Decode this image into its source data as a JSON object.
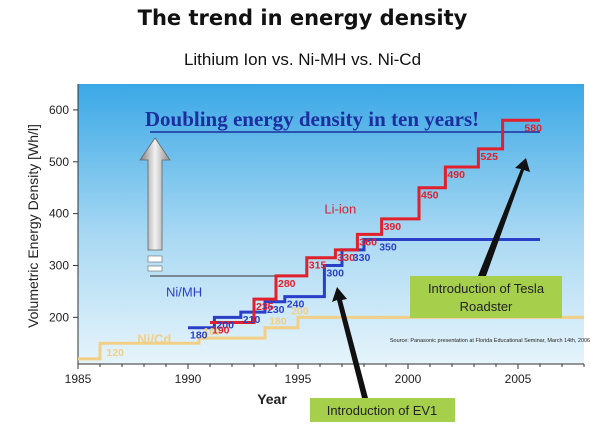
{
  "title": "The trend in energy density",
  "subtitle": "Lithium Ion vs. Ni-MH vs. Ni-Cd",
  "colors": {
    "li_ion": "#e0202a",
    "ni_mh": "#2a3fc8",
    "ni_cd": "#f2cf87",
    "plot_bg_top": "#3aa8e6",
    "plot_bg_bottom": "#e6f4fb",
    "headline": "#1b2f9e",
    "annotation_box": "#a6d04c"
  },
  "annotations": {
    "headline": "Doubling energy density in ten years!",
    "tesla": "Introduction of Tesla Roadster",
    "ev1": "Introduction of EV1",
    "source": "Source: Panasonic presentation at Florida Educational Seminar, March 14th, 2006"
  },
  "chart_data": {
    "type": "line",
    "step": true,
    "title": "The trend in energy density",
    "subtitle": "Lithium Ion vs. Ni-MH vs. Ni-Cd",
    "xlabel": "Year",
    "ylabel": "Volumetric Energy Density [Wh/l]",
    "xlim": [
      1985,
      2008
    ],
    "ylim": [
      110,
      650
    ],
    "xticks": [
      1985,
      1990,
      1995,
      2000,
      2005
    ],
    "yticks": [
      200,
      300,
      400,
      500,
      600
    ],
    "grid": false,
    "series": [
      {
        "name": "Ni/Cd",
        "color_key": "ni_cd",
        "x": [
          1985,
          1986,
          1990.5,
          1993.5,
          1995,
          2008
        ],
        "y": [
          120,
          150,
          160,
          180,
          200,
          200
        ],
        "labels": [
          {
            "x": 1986.2,
            "y": 120,
            "text": "120"
          },
          {
            "x": 1990.6,
            "y": 160,
            "text": "160"
          },
          {
            "x": 1993.6,
            "y": 180,
            "text": "180"
          },
          {
            "x": 1994.6,
            "y": 200,
            "text": "200"
          }
        ]
      },
      {
        "name": "Ni/MH",
        "color_key": "ni_mh",
        "x": [
          1990,
          1991.2,
          1992.4,
          1993.5,
          1994.4,
          1996.2,
          1997,
          1998,
          2006
        ],
        "y": [
          180,
          200,
          210,
          230,
          240,
          300,
          330,
          350,
          350
        ],
        "labels": [
          {
            "x": 1990,
            "y": 180,
            "text": "180"
          },
          {
            "x": 1991.2,
            "y": 200,
            "text": "200"
          },
          {
            "x": 1992.4,
            "y": 210,
            "text": "210"
          },
          {
            "x": 1993.5,
            "y": 230,
            "text": "230"
          },
          {
            "x": 1994.4,
            "y": 240,
            "text": "240"
          },
          {
            "x": 1996.2,
            "y": 300,
            "text": "300"
          },
          {
            "x": 1997.4,
            "y": 330,
            "text": "330"
          },
          {
            "x": 1998.6,
            "y": 350,
            "text": "350"
          }
        ]
      },
      {
        "name": "Li-ion",
        "color_key": "li_ion",
        "x": [
          1991,
          1993,
          1994,
          1995.4,
          1996.7,
          1997.7,
          1998.8,
          2000.5,
          2001.7,
          2003.2,
          2004.3,
          2006
        ],
        "y": [
          190,
          235,
          280,
          315,
          330,
          360,
          390,
          450,
          490,
          525,
          580,
          580
        ],
        "labels": [
          {
            "x": 1991,
            "y": 190,
            "text": "190"
          },
          {
            "x": 1993,
            "y": 235,
            "text": "235"
          },
          {
            "x": 1994,
            "y": 280,
            "text": "280"
          },
          {
            "x": 1995.4,
            "y": 315,
            "text": "315"
          },
          {
            "x": 1996.7,
            "y": 330,
            "text": "330"
          },
          {
            "x": 1997.7,
            "y": 360,
            "text": "360"
          },
          {
            "x": 1998.8,
            "y": 390,
            "text": "390"
          },
          {
            "x": 2000.5,
            "y": 450,
            "text": "450"
          },
          {
            "x": 2001.7,
            "y": 490,
            "text": "490"
          },
          {
            "x": 2003.2,
            "y": 525,
            "text": "525"
          },
          {
            "x": 2005.2,
            "y": 580,
            "text": "580"
          }
        ]
      }
    ],
    "series_labels": [
      {
        "text": "Li-ion",
        "x": 1996.2,
        "y": 400,
        "color_key": "li_ion"
      },
      {
        "text": "Ni/MH",
        "x": 1989,
        "y": 240,
        "color_key": "ni_mh"
      },
      {
        "text": "Ni/Cd",
        "x": 1987.7,
        "y": 150,
        "color_key": "ni_cd"
      }
    ]
  }
}
